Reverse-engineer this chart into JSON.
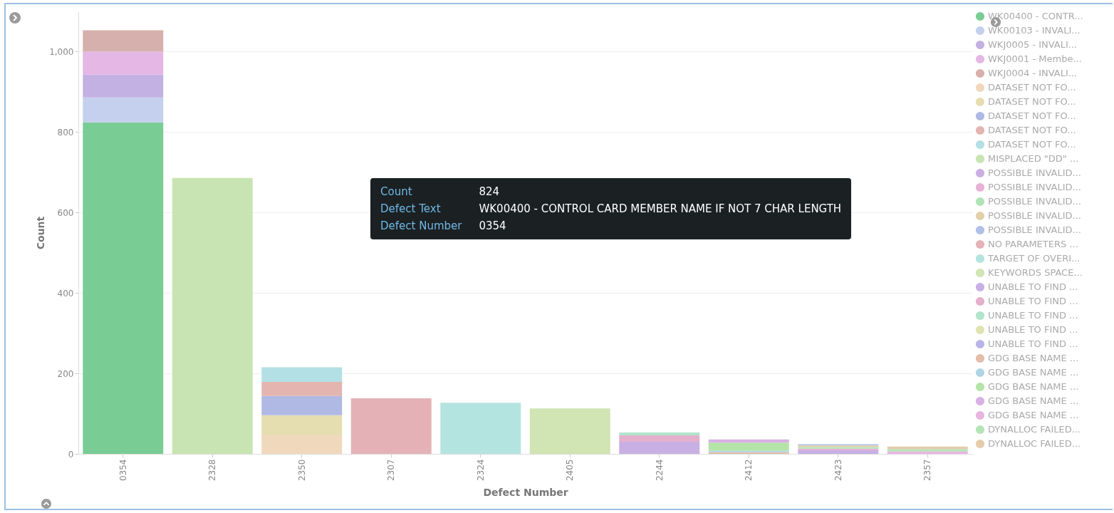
{
  "chart_data": {
    "type": "bar",
    "stacked": true,
    "xlabel": "Defect Number",
    "ylabel": "Count",
    "categories": [
      "0354",
      "2328",
      "2350",
      "2307",
      "2324",
      "2405",
      "2244",
      "2412",
      "2423",
      "2357"
    ],
    "ylim": [
      0,
      1100
    ],
    "yticks": [
      0,
      200,
      400,
      600,
      800,
      {
        "value": 1000,
        "label": "1,000"
      }
    ],
    "grid": "y",
    "legend": "right",
    "annotations": [
      "Count",
      "824",
      "Defect Text",
      "WK00400 - CONTROL CARD MEMBER NAME IF NOT 7 CHAR LENGTH",
      "Defect Number",
      "0354"
    ],
    "series": [
      {
        "name": "WK00400 - CONTR...",
        "color": "#7acc95",
        "values": [
          824,
          null,
          null,
          null,
          null,
          null,
          null,
          null,
          null,
          null
        ]
      },
      {
        "name": "WK00103 - INVALI...",
        "color": "#c5d0ee",
        "values": [
          62,
          null,
          null,
          null,
          null,
          null,
          null,
          null,
          null,
          null
        ]
      },
      {
        "name": "WKJ0005 - INVALI...",
        "color": "#c3b1e3",
        "values": [
          57,
          null,
          null,
          null,
          null,
          null,
          null,
          null,
          null,
          null
        ]
      },
      {
        "name": "WKJ0001 - Membe...",
        "color": "#e4b7e4",
        "values": [
          57,
          null,
          null,
          null,
          null,
          null,
          null,
          null,
          null,
          null
        ]
      },
      {
        "name": "WKJ0004 - INVALI...",
        "color": "#d6b0ac",
        "values": [
          53,
          null,
          null,
          null,
          null,
          null,
          null,
          null,
          null,
          null
        ]
      },
      {
        "name": "DATASET NOT FO...",
        "color": "#f0d8bd",
        "values": [
          null,
          null,
          48,
          null,
          null,
          null,
          null,
          null,
          null,
          null
        ]
      },
      {
        "name": "DATASET NOT FO...",
        "color": "#e4deb0",
        "values": [
          null,
          null,
          48,
          null,
          null,
          null,
          null,
          null,
          null,
          null
        ]
      },
      {
        "name": "DATASET NOT FO...",
        "color": "#b0b8e4",
        "values": [
          null,
          null,
          48,
          null,
          null,
          null,
          null,
          null,
          null,
          null
        ]
      },
      {
        "name": "DATASET NOT FO...",
        "color": "#e4b4b0",
        "values": [
          null,
          null,
          35,
          null,
          null,
          null,
          null,
          null,
          null,
          null
        ]
      },
      {
        "name": "DATASET NOT FO...",
        "color": "#b3e0e4",
        "values": [
          null,
          null,
          36,
          null,
          null,
          null,
          null,
          null,
          null,
          null
        ]
      },
      {
        "name": "MISPLACED \"DD\" ...",
        "color": "#c8e4b2",
        "values": [
          null,
          686,
          null,
          null,
          null,
          null,
          null,
          null,
          null,
          null
        ]
      },
      {
        "name": "POSSIBLE INVALID...",
        "color": "#c8aee4",
        "values": [
          null,
          null,
          null,
          null,
          null,
          null,
          null,
          null,
          9,
          null
        ]
      },
      {
        "name": "POSSIBLE INVALID...",
        "color": "#e8b0d4",
        "values": [
          null,
          null,
          null,
          null,
          null,
          null,
          null,
          null,
          4,
          null
        ]
      },
      {
        "name": "POSSIBLE INVALID...",
        "color": "#b0e4b8",
        "values": [
          null,
          null,
          null,
          null,
          null,
          null,
          null,
          null,
          4,
          null
        ]
      },
      {
        "name": "POSSIBLE INVALID...",
        "color": "#e4d0a8",
        "values": [
          null,
          null,
          null,
          null,
          null,
          null,
          null,
          null,
          4,
          null
        ]
      },
      {
        "name": "POSSIBLE INVALID...",
        "color": "#b0c0e8",
        "values": [
          null,
          null,
          null,
          null,
          null,
          null,
          null,
          null,
          3,
          null
        ]
      },
      {
        "name": "NO PARAMETERS ...",
        "color": "#e4b2b6",
        "values": [
          null,
          null,
          null,
          138,
          null,
          null,
          null,
          null,
          null,
          null
        ]
      },
      {
        "name": "TARGET OF OVERI...",
        "color": "#b4e4e0",
        "values": [
          null,
          null,
          null,
          null,
          127,
          null,
          null,
          null,
          null,
          null
        ]
      },
      {
        "name": "KEYWORDS SPACE...",
        "color": "#d0e4b4",
        "values": [
          null,
          null,
          null,
          null,
          null,
          113,
          null,
          null,
          null,
          null
        ]
      },
      {
        "name": "UNABLE TO FIND ...",
        "color": "#c8b0e4",
        "values": [
          null,
          null,
          null,
          null,
          null,
          null,
          30,
          null,
          null,
          null
        ]
      },
      {
        "name": "UNABLE TO FIND ...",
        "color": "#e4b0cc",
        "values": [
          null,
          null,
          null,
          null,
          null,
          null,
          16,
          null,
          null,
          null
        ]
      },
      {
        "name": "UNABLE TO FIND ...",
        "color": "#b0e4cc",
        "values": [
          null,
          null,
          null,
          null,
          null,
          null,
          7,
          null,
          null,
          null
        ]
      },
      {
        "name": "UNABLE TO FIND ...",
        "color": "#e0e4b0",
        "values": [
          null,
          null,
          null,
          null,
          null,
          null,
          null,
          null,
          null,
          null
        ]
      },
      {
        "name": "UNABLE TO FIND ...",
        "color": "#b8b4e8",
        "values": [
          null,
          null,
          null,
          null,
          null,
          null,
          null,
          null,
          null,
          null
        ]
      },
      {
        "name": "GDG BASE NAME ...",
        "color": "#e4bcaa",
        "values": [
          null,
          null,
          null,
          null,
          null,
          null,
          null,
          4,
          null,
          null
        ]
      },
      {
        "name": "GDG BASE NAME ...",
        "color": "#b0d4e4",
        "values": [
          null,
          null,
          null,
          null,
          null,
          null,
          null,
          4,
          null,
          null
        ]
      },
      {
        "name": "GDG BASE NAME ...",
        "color": "#b4e4a8",
        "values": [
          null,
          null,
          null,
          null,
          null,
          null,
          null,
          20,
          null,
          null
        ]
      },
      {
        "name": "GDG BASE NAME ...",
        "color": "#d8b0e4",
        "values": [
          null,
          null,
          null,
          null,
          null,
          null,
          null,
          8,
          null,
          null
        ]
      },
      {
        "name": "GDG BASE NAME ...",
        "color": "#e8b4e0",
        "values": [
          null,
          null,
          null,
          null,
          null,
          null,
          null,
          null,
          null,
          6
        ]
      },
      {
        "name": "DYNALLOC FAILED...",
        "color": "#b4e4b4",
        "values": [
          null,
          null,
          null,
          null,
          null,
          null,
          null,
          null,
          null,
          6
        ]
      },
      {
        "name": "DYNALLOC FAILED...",
        "color": "#e4ccaa",
        "values": [
          null,
          null,
          null,
          null,
          null,
          null,
          null,
          null,
          null,
          6
        ]
      }
    ]
  }
}
